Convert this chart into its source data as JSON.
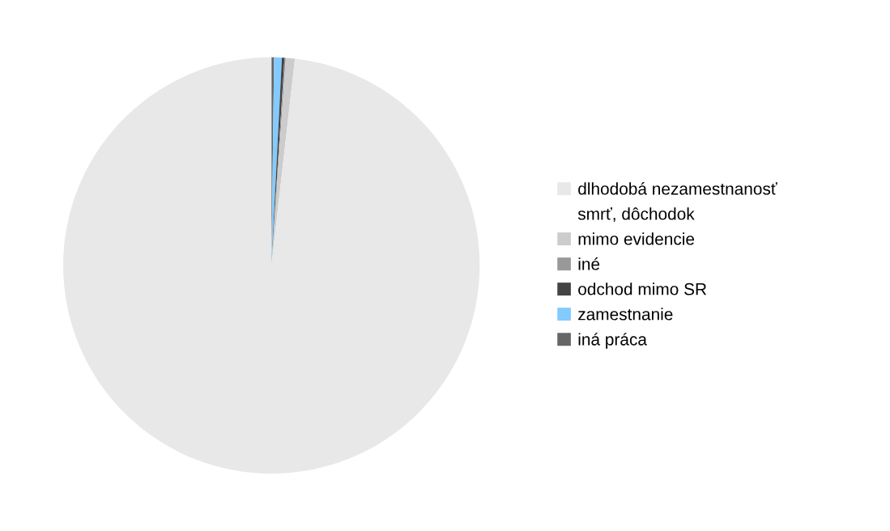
{
  "chart_data": {
    "type": "pie",
    "categories": [
      "dlhodobá nezamestnanosť",
      "smrť, dôchodok",
      "mimo evidencie",
      "iné",
      "odchod mimo SR",
      "zamestnanie",
      "iná práca"
    ],
    "values": [
      98.2,
      0.0,
      0.7,
      0.1,
      0.2,
      0.6,
      0.2
    ],
    "colors": [
      "#e8e8e8",
      "#ffffff",
      "#cccccc",
      "#999999",
      "#444444",
      "#83caff",
      "#666666"
    ],
    "legend": "right"
  }
}
